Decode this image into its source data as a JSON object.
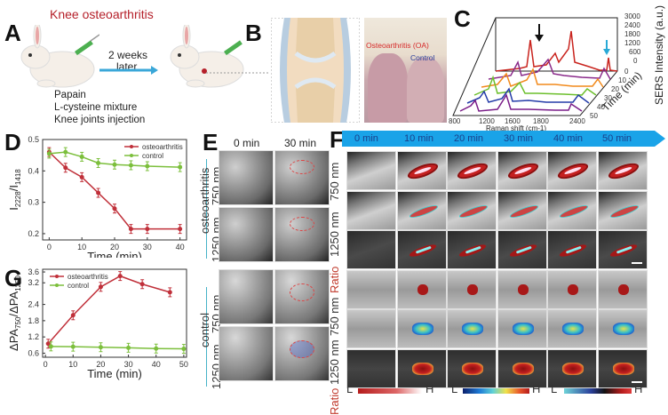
{
  "panels": {
    "A": {
      "letter": "A",
      "title": "Knee osteoarthritis",
      "arrow_text_1": "2 weeks",
      "arrow_text_2": "later",
      "steps": [
        "Papain",
        "L-cysteine mixture",
        "Knee joints injection"
      ]
    },
    "B": {
      "letter": "B",
      "photo_label_oa": "Osteoarthritis (OA)",
      "photo_label_control": "Control"
    },
    "C": {
      "letter": "C",
      "xlabel": "Raman shift (cm-1)",
      "ylabel": "SERS Intensity (a.u.)",
      "zlabel": "Time (min)",
      "x_ticks": [
        "800",
        "1200",
        "1600",
        "1800",
        "2400"
      ],
      "y_ticks": [
        "3000",
        "2400",
        "1800",
        "1200",
        "600",
        "0"
      ],
      "z_ticks": [
        "0",
        "10",
        "20",
        "30",
        "40",
        "50"
      ],
      "arrow_black_color": "#111111",
      "arrow_cyan_color": "#29a9d6"
    },
    "D": {
      "letter": "D"
    },
    "E": {
      "letter": "E",
      "col_headers": [
        "0 min",
        "30 min"
      ],
      "group_labels": [
        "osteoarthritis",
        "control"
      ],
      "row_labels": [
        "750 nm",
        "1250 nm",
        "750 nm",
        "1250 nm"
      ]
    },
    "F": {
      "letter": "F",
      "timeline": [
        "0 min",
        "10 min",
        "20 min",
        "30 min",
        "40 min",
        "50 min"
      ],
      "timeline_color": "#1aa3e8",
      "row_labels": [
        "750 nm",
        "1250 nm",
        "Ratio",
        "750 nm",
        "1250 nm",
        "Ratio"
      ],
      "colorbars": [
        {
          "low": "L",
          "high": "H"
        },
        {
          "low": "L",
          "high": "H"
        },
        {
          "low": "L",
          "high": "H"
        }
      ]
    },
    "G": {
      "letter": "G"
    }
  },
  "chart_data": [
    {
      "id": "D",
      "type": "line",
      "title": "",
      "xlabel": "Time (min)",
      "ylabel": "I2228/I1418",
      "x_ticks": [
        "0",
        "10",
        "20",
        "30",
        "40"
      ],
      "y_ticks": [
        "0.5",
        "0.4",
        "0.3",
        "0.2"
      ],
      "xlim": [
        -2,
        42
      ],
      "ylim": [
        0.18,
        0.5
      ],
      "legend_position": "top-right",
      "series": [
        {
          "name": "osteoarthritis",
          "color": "#c0303a",
          "x": [
            0,
            5,
            10,
            15,
            20,
            25,
            30,
            40
          ],
          "y": [
            0.46,
            0.41,
            0.38,
            0.33,
            0.28,
            0.215,
            0.215,
            0.215
          ]
        },
        {
          "name": "control",
          "color": "#7cbf3c",
          "x": [
            0,
            5,
            10,
            15,
            20,
            25,
            30,
            40
          ],
          "y": [
            0.455,
            0.46,
            0.445,
            0.425,
            0.42,
            0.418,
            0.415,
            0.412
          ]
        }
      ]
    },
    {
      "id": "G",
      "type": "line",
      "title": "",
      "xlabel": "Time (min)",
      "ylabel": "ΔPA750/ΔPA1250",
      "x_ticks": [
        "0",
        "10",
        "20",
        "30",
        "40",
        "50"
      ],
      "y_ticks": [
        "3.6",
        "3.2",
        "2.4",
        "1.8",
        "1.2",
        "0.6"
      ],
      "xlim": [
        -1,
        51
      ],
      "ylim": [
        0.45,
        3.7
      ],
      "legend_position": "top-left",
      "series": [
        {
          "name": "osteoarthritis",
          "color": "#c0303a",
          "x": [
            1,
            10,
            20,
            27,
            35,
            45
          ],
          "y": [
            0.95,
            2.0,
            3.05,
            3.45,
            3.15,
            2.85
          ]
        },
        {
          "name": "control",
          "color": "#7cbf3c",
          "x": [
            2,
            10,
            20,
            30,
            40,
            50
          ],
          "y": [
            0.85,
            0.84,
            0.82,
            0.8,
            0.77,
            0.76
          ]
        }
      ]
    }
  ]
}
